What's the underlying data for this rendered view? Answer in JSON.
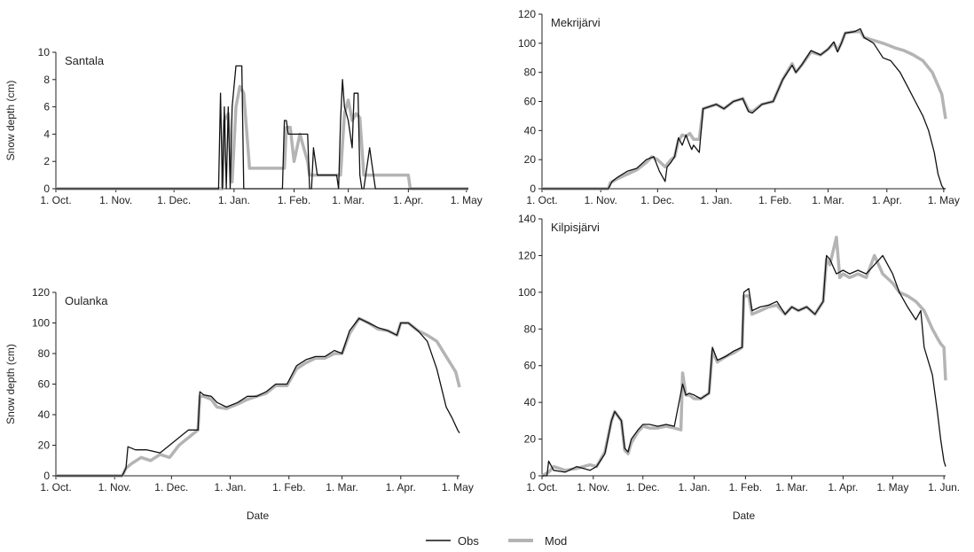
{
  "legend": {
    "obs_label": "Obs",
    "mod_label": "Mod"
  },
  "colors": {
    "obs": "#111111",
    "mod": "#b4b4b4"
  },
  "chart_data": [
    {
      "type": "line",
      "title": "Santala",
      "xlabel": "",
      "ylabel": "Snow depth (cm)",
      "ylim": [
        0,
        10
      ],
      "yticks": [
        0,
        2,
        4,
        6,
        8,
        10
      ],
      "xlim": [
        "10-01",
        "05-02"
      ],
      "xticks": [
        "10-01",
        "11-01",
        "12-01",
        "01-01",
        "02-01",
        "03-01",
        "04-01",
        "05-01"
      ],
      "xtick_labels": [
        "1. Oct.",
        "1. Nov.",
        "1. Dec.",
        "1. Jan.",
        "1. Feb.",
        "1. Mar.",
        "1. Apr.",
        "1. May"
      ],
      "series": [
        {
          "name": "Obs",
          "x": [
            "10-01",
            "12-24",
            "12-25",
            "12-26",
            "12-27",
            "12-28",
            "12-29",
            "12-30",
            "12-31",
            "01-02",
            "01-05",
            "01-06",
            "01-07",
            "01-08",
            "01-20",
            "01-26",
            "01-27",
            "01-28",
            "01-29",
            "02-08",
            "02-09",
            "02-10",
            "02-11",
            "02-13",
            "02-17",
            "02-20",
            "02-23",
            "02-24",
            "02-25",
            "02-26",
            "02-27",
            "03-01",
            "03-03",
            "03-04",
            "03-06",
            "03-07",
            "03-08",
            "03-09",
            "03-12",
            "03-15",
            "04-02",
            "05-02"
          ],
          "y": [
            0,
            0,
            7,
            0,
            6,
            0,
            6,
            0,
            6,
            9,
            9,
            0,
            0,
            0,
            0,
            0,
            5,
            5,
            4,
            4,
            0,
            0,
            3,
            1,
            1,
            1,
            1,
            0,
            5,
            8,
            6,
            5,
            3,
            7,
            7,
            1,
            0,
            0,
            3,
            0,
            0,
            0
          ]
        },
        {
          "name": "Mod",
          "x": [
            "10-01",
            "12-26",
            "12-27",
            "12-29",
            "12-31",
            "01-02",
            "01-04",
            "01-06",
            "01-09",
            "01-27",
            "01-28",
            "01-30",
            "02-01",
            "02-04",
            "02-06",
            "02-08",
            "02-09",
            "02-15",
            "02-20",
            "02-25",
            "02-27",
            "03-01",
            "03-03",
            "03-05",
            "03-07",
            "03-09",
            "04-01",
            "04-02",
            "05-02"
          ],
          "y": [
            0,
            0,
            5,
            5.5,
            0.5,
            6,
            7.5,
            7,
            1.5,
            1.5,
            4.5,
            4.5,
            2,
            4,
            3,
            2,
            1,
            1,
            1,
            1,
            5.5,
            6.5,
            5,
            5.5,
            5.2,
            1,
            1,
            0,
            0
          ]
        }
      ]
    },
    {
      "type": "line",
      "title": "Mekrijärvi",
      "xlabel": "",
      "ylabel": "",
      "ylim": [
        0,
        120
      ],
      "yticks": [
        0,
        20,
        40,
        60,
        80,
        100,
        120
      ],
      "xlim": [
        "10-01",
        "05-02"
      ],
      "xticks": [
        "10-01",
        "11-01",
        "12-01",
        "01-01",
        "02-01",
        "03-01",
        "04-01",
        "05-01"
      ],
      "xtick_labels": [
        "1. Oct.",
        "1. Nov.",
        "1. Dec.",
        "1. Jan.",
        "1. Feb.",
        "1. Mar.",
        "1. Apr.",
        "1. May"
      ],
      "series": [
        {
          "name": "Obs",
          "x": [
            "10-01",
            "11-05",
            "11-07",
            "11-10",
            "11-15",
            "11-20",
            "11-25",
            "11-29",
            "12-02",
            "12-05",
            "12-06",
            "12-08",
            "12-10",
            "12-12",
            "12-14",
            "12-16",
            "12-18",
            "12-19",
            "12-20",
            "12-23",
            "12-25",
            "01-01",
            "01-05",
            "01-10",
            "01-15",
            "01-18",
            "01-20",
            "01-25",
            "01-31",
            "02-05",
            "02-10",
            "02-12",
            "02-15",
            "02-20",
            "02-25",
            "03-01",
            "03-04",
            "03-06",
            "03-08",
            "03-10",
            "03-15",
            "03-18",
            "03-20",
            "03-25",
            "03-30",
            "04-03",
            "04-08",
            "04-12",
            "04-16",
            "04-20",
            "04-23",
            "04-26",
            "04-28",
            "04-30",
            "05-01",
            "05-02"
          ],
          "y": [
            0,
            0,
            5,
            8,
            12,
            14,
            20,
            22,
            12,
            5,
            15,
            18,
            22,
            35,
            30,
            37,
            30,
            27,
            30,
            25,
            55,
            58,
            55,
            60,
            62,
            53,
            52,
            58,
            60,
            75,
            85,
            80,
            85,
            95,
            92,
            96,
            101,
            94,
            100,
            107,
            108,
            110,
            104,
            100,
            90,
            88,
            80,
            70,
            60,
            50,
            40,
            25,
            10,
            2,
            0,
            0
          ]
        },
        {
          "name": "Mod",
          "x": [
            "10-01",
            "11-05",
            "11-06",
            "11-10",
            "11-15",
            "11-20",
            "11-25",
            "11-28",
            "12-01",
            "12-05",
            "12-08",
            "12-10",
            "12-12",
            "12-14",
            "12-16",
            "12-18",
            "12-20",
            "12-23",
            "12-25",
            "01-01",
            "01-05",
            "01-10",
            "01-15",
            "01-18",
            "01-20",
            "01-25",
            "01-31",
            "02-05",
            "02-10",
            "02-12",
            "02-15",
            "02-20",
            "02-25",
            "03-01",
            "03-04",
            "03-06",
            "03-08",
            "03-10",
            "03-15",
            "03-18",
            "03-20",
            "03-25",
            "03-30",
            "04-05",
            "04-10",
            "04-15",
            "04-20",
            "04-25",
            "04-30",
            "05-02"
          ],
          "y": [
            0,
            0,
            4,
            7,
            10,
            13,
            18,
            22,
            20,
            15,
            20,
            22,
            33,
            37,
            36,
            38,
            34,
            34,
            55,
            58,
            55,
            60,
            62,
            54,
            53,
            58,
            60,
            75,
            86,
            80,
            85,
            94,
            92,
            96,
            100,
            95,
            100,
            107,
            108,
            108,
            104,
            102,
            100,
            97,
            95,
            92,
            88,
            80,
            65,
            48
          ]
        }
      ]
    },
    {
      "type": "line",
      "title": "Oulanka",
      "xlabel": "Date",
      "ylabel": "Snow depth (cm)",
      "ylim": [
        0,
        120
      ],
      "yticks": [
        0,
        20,
        40,
        60,
        80,
        100,
        120
      ],
      "xlim": [
        "10-01",
        "05-02"
      ],
      "xticks": [
        "10-01",
        "11-01",
        "12-01",
        "01-01",
        "02-01",
        "03-01",
        "04-01",
        "05-01"
      ],
      "xtick_labels": [
        "1. Oct.",
        "1. Nov.",
        "1. Dec.",
        "1. Jan.",
        "1. Feb.",
        "1. Mar.",
        "1. Apr.",
        "1. May"
      ],
      "series": [
        {
          "name": "Obs",
          "x": [
            "10-01",
            "11-05",
            "11-07",
            "11-08",
            "11-12",
            "11-18",
            "11-25",
            "11-30",
            "12-05",
            "12-10",
            "12-15",
            "12-16",
            "12-18",
            "12-22",
            "12-25",
            "12-30",
            "01-05",
            "01-10",
            "01-15",
            "01-20",
            "01-25",
            "01-31",
            "02-05",
            "02-10",
            "02-15",
            "02-20",
            "02-25",
            "03-01",
            "03-05",
            "03-10",
            "03-15",
            "03-20",
            "03-25",
            "03-30",
            "04-01",
            "04-05",
            "04-10",
            "04-15",
            "04-20",
            "04-25",
            "04-28",
            "05-01",
            "05-02"
          ],
          "y": [
            0,
            0,
            5,
            19,
            17,
            17,
            15,
            20,
            25,
            30,
            30,
            55,
            53,
            52,
            48,
            45,
            48,
            52,
            52,
            55,
            60,
            60,
            72,
            76,
            78,
            78,
            82,
            80,
            95,
            103,
            100,
            97,
            95,
            92,
            100,
            100,
            95,
            88,
            70,
            45,
            38,
            30,
            28
          ]
        },
        {
          "name": "Mod",
          "x": [
            "10-01",
            "11-05",
            "11-07",
            "11-10",
            "11-15",
            "11-20",
            "11-25",
            "11-30",
            "12-05",
            "12-10",
            "12-15",
            "12-16",
            "12-18",
            "12-22",
            "12-25",
            "12-30",
            "01-05",
            "01-10",
            "01-15",
            "01-20",
            "01-25",
            "01-31",
            "02-05",
            "02-10",
            "02-15",
            "02-20",
            "02-25",
            "03-01",
            "03-05",
            "03-10",
            "03-15",
            "03-20",
            "03-25",
            "03-30",
            "04-01",
            "04-05",
            "04-10",
            "04-15",
            "04-20",
            "04-25",
            "04-30",
            "05-02"
          ],
          "y": [
            0,
            0,
            5,
            8,
            12,
            10,
            14,
            12,
            20,
            25,
            30,
            52,
            52,
            50,
            45,
            44,
            47,
            50,
            52,
            54,
            59,
            59,
            70,
            74,
            77,
            77,
            80,
            80,
            93,
            103,
            100,
            96,
            95,
            92,
            100,
            100,
            95,
            92,
            88,
            78,
            68,
            58
          ]
        }
      ]
    },
    {
      "type": "line",
      "title": "Kilpisjärvi",
      "xlabel": "Date",
      "ylabel": "",
      "ylim": [
        0,
        140
      ],
      "yticks": [
        0,
        20,
        40,
        60,
        80,
        100,
        120,
        140
      ],
      "xlim": [
        "10-01",
        "06-02"
      ],
      "xticks": [
        "10-01",
        "11-01",
        "12-01",
        "01-01",
        "02-01",
        "03-01",
        "04-01",
        "05-01",
        "06-01"
      ],
      "xtick_labels": [
        "1. Oct.",
        "1. Nov.",
        "1. Dec.",
        "1. Jan.",
        "1. Feb.",
        "1. Mar.",
        "1. Apr.",
        "1. May",
        "1. Jun."
      ],
      "series": [
        {
          "name": "Obs",
          "x": [
            "10-01",
            "10-04",
            "10-05",
            "10-08",
            "10-15",
            "10-22",
            "10-30",
            "11-03",
            "11-08",
            "11-12",
            "11-14",
            "11-18",
            "11-20",
            "11-22",
            "11-24",
            "11-28",
            "12-01",
            "12-05",
            "12-10",
            "12-15",
            "12-20",
            "12-25",
            "12-27",
            "12-29",
            "01-01",
            "01-05",
            "01-10",
            "01-12",
            "01-15",
            "01-20",
            "01-25",
            "01-30",
            "01-31",
            "02-03",
            "02-05",
            "02-10",
            "02-15",
            "02-20",
            "02-25",
            "03-01",
            "03-05",
            "03-10",
            "03-15",
            "03-20",
            "03-22",
            "03-24",
            "03-28",
            "04-01",
            "04-05",
            "04-10",
            "04-15",
            "04-20",
            "04-25",
            "05-01",
            "05-05",
            "05-10",
            "05-15",
            "05-18",
            "05-20",
            "05-25",
            "05-28",
            "05-30",
            "06-01",
            "06-02"
          ],
          "y": [
            0,
            0,
            8,
            3,
            2,
            5,
            3,
            5,
            12,
            30,
            35,
            30,
            15,
            13,
            20,
            25,
            28,
            28,
            27,
            28,
            27,
            50,
            44,
            45,
            44,
            42,
            45,
            70,
            63,
            65,
            68,
            70,
            100,
            102,
            90,
            92,
            93,
            95,
            88,
            92,
            90,
            92,
            88,
            95,
            120,
            118,
            110,
            112,
            110,
            112,
            110,
            115,
            120,
            110,
            100,
            92,
            85,
            90,
            70,
            55,
            35,
            20,
            8,
            5
          ]
        },
        {
          "name": "Mod",
          "x": [
            "10-01",
            "10-05",
            "10-08",
            "10-15",
            "10-22",
            "10-30",
            "11-03",
            "11-08",
            "11-12",
            "11-14",
            "11-18",
            "11-20",
            "11-22",
            "11-24",
            "11-28",
            "12-01",
            "12-05",
            "12-10",
            "12-15",
            "12-20",
            "12-24",
            "12-25",
            "12-27",
            "12-29",
            "01-01",
            "01-05",
            "01-10",
            "01-12",
            "01-15",
            "01-20",
            "01-25",
            "01-30",
            "01-31",
            "02-03",
            "02-05",
            "02-10",
            "02-15",
            "02-20",
            "02-25",
            "03-01",
            "03-05",
            "03-10",
            "03-15",
            "03-20",
            "03-22",
            "03-24",
            "03-28",
            "03-30",
            "04-01",
            "04-05",
            "04-10",
            "04-15",
            "04-20",
            "04-25",
            "05-01",
            "05-05",
            "05-10",
            "05-15",
            "05-20",
            "05-25",
            "05-28",
            "05-30",
            "06-01",
            "06-02"
          ],
          "y": [
            0,
            2,
            5,
            3,
            4,
            6,
            5,
            13,
            30,
            35,
            30,
            14,
            12,
            18,
            24,
            27,
            26,
            26,
            27,
            26,
            25,
            56,
            44,
            44,
            42,
            42,
            45,
            68,
            62,
            65,
            67,
            70,
            98,
            98,
            88,
            90,
            92,
            93,
            88,
            92,
            90,
            92,
            88,
            95,
            118,
            115,
            130,
            108,
            110,
            108,
            110,
            108,
            120,
            110,
            105,
            100,
            98,
            95,
            90,
            80,
            75,
            72,
            70,
            52
          ]
        }
      ]
    }
  ]
}
